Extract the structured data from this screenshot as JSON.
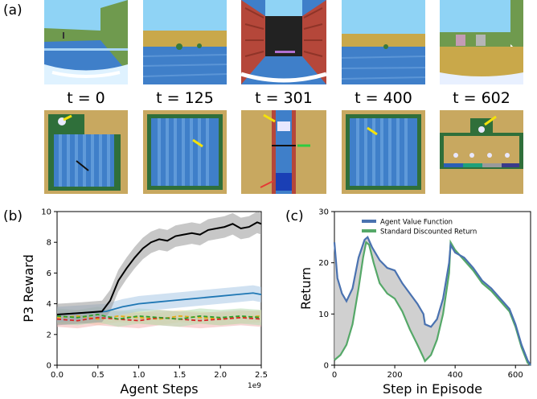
{
  "panel_labels": {
    "a": "(a)",
    "b": "(b)",
    "c": "(c)"
  },
  "frames": [
    {
      "label": "t = 0"
    },
    {
      "label": "t = 125"
    },
    {
      "label": "t = 301"
    },
    {
      "label": "t = 400"
    },
    {
      "label": "t = 602"
    }
  ],
  "colors": {
    "sky": "#8fd3f5",
    "water": "#3f7fc9",
    "sand": "#c9a84a",
    "brick": "#b5473a",
    "topdown_bg": "#c8a860",
    "arrow_yellow": "#f4e20a",
    "arrow_green": "#2ecc40",
    "arrow_red": "#e53935",
    "arrow_black": "#111111"
  },
  "chart_data": [
    {
      "type": "line",
      "panel": "b",
      "xlabel": "Agent Steps",
      "ylabel": "P3 Reward",
      "xlim": [
        0,
        2.5
      ],
      "ylim": [
        0,
        10
      ],
      "xticks": [
        "0.0",
        "0.5",
        "1.0",
        "1.5",
        "2.0",
        "2.5"
      ],
      "yticks": [
        "0",
        "2",
        "4",
        "6",
        "8",
        "10"
      ],
      "x_multiplier": "1e9",
      "grid": false,
      "series": [
        {
          "color": "#000000",
          "band": "#999999",
          "x": [
            0,
            0.3,
            0.55,
            0.65,
            0.75,
            0.85,
            0.95,
            1.05,
            1.15,
            1.25,
            1.35,
            1.45,
            1.55,
            1.65,
            1.75,
            1.85,
            1.95,
            2.05,
            2.15,
            2.25,
            2.35,
            2.45,
            2.5
          ],
          "y": [
            3.3,
            3.4,
            3.5,
            4.2,
            5.5,
            6.3,
            7.0,
            7.6,
            8.0,
            8.2,
            8.1,
            8.4,
            8.5,
            8.6,
            8.5,
            8.8,
            8.9,
            9.0,
            9.2,
            8.9,
            9.0,
            9.3,
            9.2
          ],
          "spread": 0.7
        },
        {
          "color": "#1f77b4",
          "band": "#a9c9e6",
          "x": [
            0,
            0.3,
            0.6,
            0.8,
            1.0,
            1.2,
            1.4,
            1.6,
            1.8,
            2.0,
            2.2,
            2.4,
            2.5
          ],
          "y": [
            3.3,
            3.4,
            3.5,
            3.8,
            4.0,
            4.1,
            4.2,
            4.3,
            4.4,
            4.5,
            4.6,
            4.7,
            4.6
          ],
          "spread": 0.5
        },
        {
          "color": "#2ca02c",
          "band": "#b5dcb0",
          "x": [
            0,
            0.25,
            0.5,
            0.75,
            1.0,
            1.25,
            1.5,
            1.75,
            2.0,
            2.25,
            2.5
          ],
          "y": [
            3.2,
            3.1,
            3.3,
            3.0,
            3.2,
            3.1,
            3.0,
            3.2,
            3.1,
            3.2,
            3.1
          ],
          "spread": 0.5
        },
        {
          "color": "#d62728",
          "band": "#f0b3b1",
          "x": [
            0,
            0.25,
            0.5,
            0.75,
            1.0,
            1.25,
            1.5,
            1.75,
            2.0,
            2.25,
            2.5
          ],
          "y": [
            3.0,
            2.9,
            3.1,
            3.0,
            2.9,
            3.1,
            3.0,
            2.9,
            3.0,
            3.1,
            3.0
          ],
          "spread": 0.5
        },
        {
          "color": "#e6a817",
          "band": "#f3dca5",
          "x": [
            0,
            0.25,
            0.5,
            0.75,
            1.0,
            1.25,
            1.5,
            1.75,
            2.0,
            2.25,
            2.5
          ],
          "y": [
            3.1,
            3.2,
            3.0,
            3.2,
            3.1,
            3.0,
            3.2,
            3.1,
            3.0,
            3.1,
            3.2
          ],
          "spread": 0.4
        }
      ]
    },
    {
      "type": "line",
      "panel": "c",
      "xlabel": "Step in Episode",
      "ylabel": "Return",
      "xlim": [
        0,
        650
      ],
      "ylim": [
        0,
        30
      ],
      "xticks": [
        "0",
        "200",
        "400",
        "600"
      ],
      "yticks": [
        "0",
        "10",
        "20",
        "30"
      ],
      "grid": false,
      "legend": "top-right",
      "fill_between": true,
      "series": [
        {
          "name": "Agent Value Function",
          "color": "#4a72b0",
          "x": [
            0,
            10,
            25,
            40,
            60,
            80,
            100,
            110,
            125,
            150,
            175,
            200,
            225,
            250,
            275,
            295,
            300,
            320,
            340,
            360,
            380,
            385,
            400,
            430,
            460,
            490,
            520,
            550,
            580,
            600,
            620,
            640,
            650
          ],
          "y": [
            24,
            17,
            14,
            12.5,
            15,
            21,
            24.5,
            25,
            23,
            20.5,
            19,
            18.5,
            16,
            14,
            12,
            10,
            8,
            7.5,
            9,
            13,
            20,
            23.5,
            22,
            21,
            19,
            16.5,
            15,
            13,
            11,
            8,
            4,
            1,
            0
          ]
        },
        {
          "name": "Standard Discounted Return",
          "color": "#55a868",
          "x": [
            0,
            20,
            40,
            60,
            80,
            95,
            105,
            115,
            130,
            150,
            175,
            200,
            225,
            250,
            275,
            295,
            300,
            320,
            340,
            360,
            380,
            385,
            400,
            430,
            460,
            490,
            520,
            550,
            580,
            600,
            620,
            640,
            650
          ],
          "y": [
            1,
            2,
            4,
            8,
            15,
            21,
            24,
            23.5,
            20,
            16,
            14,
            13,
            10.5,
            7,
            4,
            1.5,
            0.8,
            2,
            5,
            10,
            18,
            24,
            22.5,
            20.5,
            18.5,
            16,
            14.5,
            12.5,
            10.5,
            7.5,
            3.5,
            0.5,
            0
          ]
        }
      ]
    }
  ]
}
